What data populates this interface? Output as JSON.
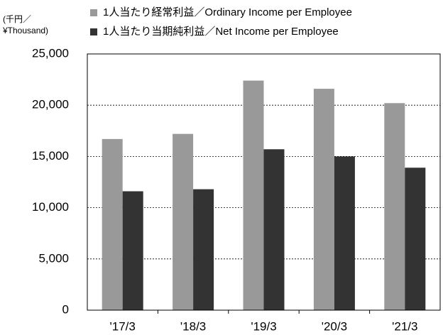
{
  "chart_data": {
    "type": "bar",
    "ylabel": [
      "(千円／",
      "¥Thousand)"
    ],
    "categories": [
      "'17/3",
      "'18/3",
      "'19/3",
      "'20/3",
      "'21/3"
    ],
    "series": [
      {
        "name": "1人当たり経常利益／Ordinary Income per Employee",
        "color": "#999999",
        "values": [
          16700,
          17200,
          22400,
          21600,
          20200
        ]
      },
      {
        "name": "1人当たり当期純利益／Net Income per Employee",
        "color": "#333333",
        "values": [
          11600,
          11800,
          15700,
          15000,
          13900
        ]
      }
    ],
    "ylim": [
      0,
      25000
    ],
    "yticks": [
      0,
      {
        "value": 5000,
        "label": "5,000"
      },
      {
        "value": 10000,
        "label": "10,000"
      },
      {
        "value": 15000,
        "label": "15,000"
      },
      {
        "value": 20000,
        "label": "20,000"
      },
      {
        "value": 25000,
        "label": "25,000"
      }
    ],
    "grid": true
  }
}
